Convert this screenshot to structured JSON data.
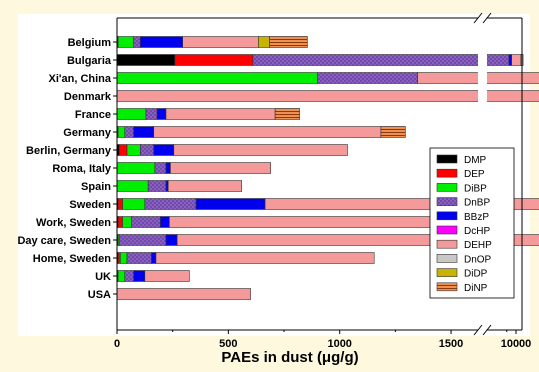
{
  "chart_data": {
    "type": "bar",
    "orientation": "horizontal",
    "stacked": true,
    "title": "",
    "xlabel": "PAEs in dust (μg/g)",
    "ylabel": "",
    "xlim": [
      0,
      10000
    ],
    "axis_break": "broken x axis between 3000 and 10000",
    "x_ticks": [
      0,
      500,
      1000,
      1500,
      2000,
      2500,
      3000,
      10000
    ],
    "legend_position": "right",
    "grid": false,
    "categories": [
      "Belgium",
      "Bulgaria",
      "Xi'an, China",
      "Denmark",
      "France",
      "Germany",
      "Berlin, Germany",
      "Roma, Italy",
      "Spain",
      "Sweden",
      "Work, Sweden",
      "Day care, Sweden",
      "Home, Sweden",
      "UK",
      "USA"
    ],
    "series": [
      {
        "name": "DMP",
        "color": "#000000",
        "pattern": "solid",
        "values": [
          0,
          260,
          0,
          0,
          0,
          0,
          10,
          0,
          0,
          5,
          5,
          0,
          5,
          0,
          0
        ]
      },
      {
        "name": "DEP",
        "color": "#ff0000",
        "pattern": "solid",
        "values": [
          5,
          350,
          0,
          0,
          0,
          5,
          35,
          0,
          0,
          20,
          20,
          5,
          10,
          5,
          0
        ]
      },
      {
        "name": "DiBP",
        "color": "#00ee00",
        "pattern": "solid",
        "values": [
          70,
          0,
          900,
          0,
          130,
          30,
          60,
          170,
          140,
          100,
          40,
          5,
          30,
          30,
          0
        ]
      },
      {
        "name": "DnBP",
        "color": "#8855cc",
        "pattern": "dotted",
        "values": [
          30,
          7800,
          450,
          0,
          50,
          40,
          60,
          50,
          80,
          230,
          130,
          210,
          110,
          40,
          0
        ]
      },
      {
        "name": "BBzP",
        "color": "#0000ee",
        "pattern": "solid",
        "values": [
          190,
          600,
          0,
          0,
          40,
          90,
          90,
          20,
          10,
          310,
          40,
          50,
          20,
          50,
          0
        ]
      },
      {
        "name": "DcHP",
        "color": "#ff00ff",
        "pattern": "solid",
        "values": [
          0,
          0,
          0,
          0,
          0,
          0,
          0,
          0,
          0,
          0,
          0,
          0,
          0,
          0,
          0
        ]
      },
      {
        "name": "DEHP",
        "color": "#f59a9a",
        "pattern": "solid",
        "values": [
          340,
          2100,
          800,
          3200,
          490,
          1020,
          780,
          450,
          330,
          1310,
          1490,
          2000,
          980,
          200,
          600
        ]
      },
      {
        "name": "DnOP",
        "color": "#c8c8c8",
        "pattern": "solid",
        "values": [
          0,
          500,
          0,
          0,
          0,
          0,
          0,
          0,
          0,
          0,
          0,
          0,
          0,
          0,
          0
        ]
      },
      {
        "name": "DiDP",
        "color": "#c8b400",
        "pattern": "solid",
        "values": [
          50,
          0,
          0,
          0,
          0,
          0,
          0,
          0,
          0,
          0,
          0,
          0,
          0,
          0,
          0
        ]
      },
      {
        "name": "DiNP",
        "color": "#f08a4a",
        "pattern": "lined",
        "values": [
          170,
          0,
          0,
          0,
          110,
          110,
          0,
          0,
          0,
          640,
          0,
          0,
          0,
          0,
          0
        ]
      }
    ]
  }
}
